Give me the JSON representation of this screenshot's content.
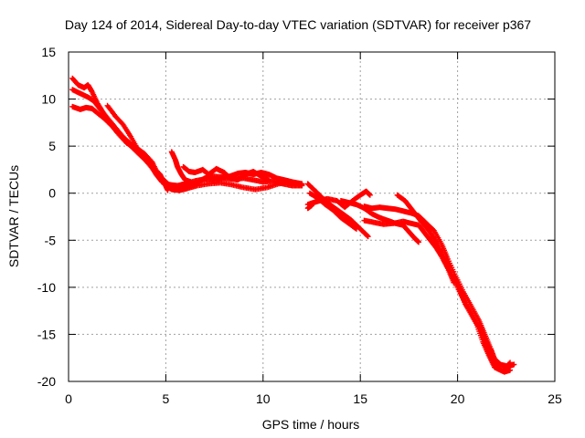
{
  "chart_data": {
    "type": "scatter",
    "title": "Day 124 of 2014, Sidereal Day-to-day VTEC variation (SDTVAR) for receiver p367",
    "xlabel": "GPS time / hours",
    "ylabel": "SDTVAR / TECUs",
    "xlim": [
      0,
      25
    ],
    "ylim": [
      -20,
      15
    ],
    "xticks": [
      0,
      5,
      10,
      15,
      20,
      25
    ],
    "yticks": [
      -20,
      -15,
      -10,
      -5,
      0,
      5,
      10,
      15
    ],
    "grid": true,
    "marker": "+",
    "series": [
      {
        "name": "SDTVAR",
        "color": "#ff0000",
        "tracks": [
          [
            [
              0.2,
              12.2
            ],
            [
              0.5,
              11.5
            ],
            [
              0.8,
              11.2
            ],
            [
              1.0,
              11.5
            ],
            [
              1.2,
              10.8
            ],
            [
              1.5,
              9.5
            ],
            [
              1.8,
              8.5
            ],
            [
              2.1,
              7.5
            ],
            [
              2.5,
              6.5
            ],
            [
              2.9,
              5.6
            ],
            [
              3.3,
              4.8
            ],
            [
              3.7,
              4.0
            ],
            [
              4.1,
              3.2
            ],
            [
              4.4,
              2.6
            ],
            [
              4.7,
              2.0
            ],
            [
              4.9,
              1.2
            ],
            [
              5.1,
              0.3
            ]
          ],
          [
            [
              0.2,
              11.0
            ],
            [
              0.6,
              10.6
            ],
            [
              1.0,
              10.2
            ],
            [
              1.3,
              9.8
            ],
            [
              1.6,
              9.0
            ],
            [
              2.0,
              8.0
            ],
            [
              2.4,
              7.0
            ],
            [
              2.8,
              6.0
            ],
            [
              3.2,
              5.2
            ],
            [
              3.6,
              4.6
            ],
            [
              3.9,
              4.0
            ],
            [
              4.2,
              3.0
            ],
            [
              4.5,
              2.0
            ],
            [
              4.8,
              1.2
            ],
            [
              5.2,
              0.9
            ],
            [
              5.6,
              0.8
            ],
            [
              6.0,
              1.0
            ],
            [
              6.5,
              1.3
            ],
            [
              7.0,
              1.5
            ],
            [
              7.5,
              1.4
            ],
            [
              8.0,
              1.6
            ],
            [
              8.5,
              1.5
            ],
            [
              9.0,
              1.6
            ],
            [
              9.5,
              1.4
            ],
            [
              10.0,
              1.2
            ],
            [
              10.5,
              1.3
            ],
            [
              11.0,
              1.0
            ],
            [
              11.5,
              0.8
            ],
            [
              12.0,
              0.8
            ]
          ],
          [
            [
              0.2,
              9.2
            ],
            [
              0.6,
              8.9
            ],
            [
              0.9,
              9.1
            ],
            [
              1.2,
              9.0
            ],
            [
              1.5,
              8.5
            ],
            [
              1.8,
              8.0
            ],
            [
              2.2,
              7.2
            ],
            [
              2.6,
              6.2
            ],
            [
              3.0,
              5.3
            ],
            [
              3.5,
              4.8
            ],
            [
              3.9,
              4.2
            ],
            [
              4.3,
              3.3
            ],
            [
              4.6,
              2.0
            ],
            [
              4.9,
              1.0
            ],
            [
              5.3,
              0.4
            ],
            [
              5.7,
              0.3
            ],
            [
              6.1,
              0.5
            ],
            [
              6.6,
              0.8
            ],
            [
              7.2,
              1.0
            ],
            [
              7.8,
              1.1
            ],
            [
              8.4,
              0.9
            ],
            [
              9.0,
              0.6
            ],
            [
              9.6,
              0.4
            ],
            [
              10.2,
              0.6
            ],
            [
              10.8,
              1.0
            ],
            [
              11.4,
              1.2
            ],
            [
              12.0,
              0.9
            ]
          ],
          [
            [
              2.0,
              9.3
            ],
            [
              2.4,
              8.2
            ],
            [
              2.8,
              7.3
            ],
            [
              3.2,
              6.0
            ],
            [
              3.6,
              4.5
            ],
            [
              4.0,
              3.4
            ],
            [
              4.4,
              2.4
            ],
            [
              4.8,
              1.6
            ],
            [
              5.1,
              1.0
            ]
          ],
          [
            [
              5.3,
              4.4
            ],
            [
              5.5,
              3.5
            ],
            [
              5.6,
              2.8
            ],
            [
              5.8,
              2.0
            ],
            [
              6.0,
              1.4
            ],
            [
              6.3,
              1.2
            ]
          ],
          [
            [
              5.9,
              2.8
            ],
            [
              6.2,
              2.3
            ],
            [
              6.5,
              2.2
            ],
            [
              6.9,
              2.5
            ],
            [
              7.2,
              2.0
            ],
            [
              7.6,
              2.6
            ],
            [
              8.0,
              2.2
            ],
            [
              8.3,
              1.6
            ],
            [
              8.7,
              1.4
            ],
            [
              9.1,
              2.0
            ],
            [
              9.5,
              2.3
            ],
            [
              9.9,
              1.8
            ],
            [
              10.3,
              1.4
            ]
          ],
          [
            [
              5.5,
              0.6
            ],
            [
              5.9,
              0.8
            ],
            [
              6.3,
              1.0
            ],
            [
              6.7,
              1.2
            ],
            [
              7.0,
              1.6
            ],
            [
              7.4,
              1.8
            ],
            [
              7.9,
              1.7
            ],
            [
              8.3,
              1.8
            ],
            [
              8.7,
              2.1
            ],
            [
              9.1,
              2.2
            ],
            [
              9.5,
              2.0
            ],
            [
              9.9,
              2.2
            ],
            [
              10.3,
              2.0
            ],
            [
              10.7,
              1.6
            ],
            [
              11.1,
              1.4
            ],
            [
              11.5,
              1.2
            ],
            [
              12.0,
              1.0
            ]
          ],
          [
            [
              12.3,
              1.0
            ],
            [
              12.6,
              0.4
            ],
            [
              12.9,
              -0.2
            ],
            [
              13.3,
              -1.0
            ],
            [
              13.7,
              -1.6
            ],
            [
              14.1,
              -2.2
            ],
            [
              14.5,
              -2.8
            ],
            [
              14.8,
              -3.4
            ],
            [
              15.1,
              -4.0
            ],
            [
              15.4,
              -4.6
            ]
          ],
          [
            [
              12.4,
              0.0
            ],
            [
              12.8,
              -0.5
            ],
            [
              13.2,
              -1.2
            ],
            [
              13.6,
              -1.8
            ],
            [
              14.0,
              -2.6
            ],
            [
              14.4,
              -3.2
            ],
            [
              14.8,
              -3.8
            ]
          ],
          [
            [
              12.3,
              -1.2
            ],
            [
              12.6,
              -1.0
            ],
            [
              12.9,
              -0.8
            ],
            [
              13.3,
              -0.6
            ],
            [
              13.8,
              -0.8
            ],
            [
              14.2,
              -1.5
            ],
            [
              14.6,
              -0.8
            ],
            [
              15.0,
              -0.2
            ],
            [
              15.3,
              0.2
            ],
            [
              15.5,
              -0.2
            ]
          ],
          [
            [
              14.0,
              -0.8
            ],
            [
              14.4,
              -1.0
            ],
            [
              14.8,
              -1.2
            ],
            [
              15.2,
              -1.6
            ],
            [
              15.6,
              -2.2
            ],
            [
              16.0,
              -2.6
            ],
            [
              16.4,
              -2.9
            ],
            [
              16.8,
              -3.2
            ],
            [
              17.2,
              -3.4
            ],
            [
              17.5,
              -4.1
            ],
            [
              17.8,
              -4.8
            ],
            [
              18.0,
              -5.2
            ]
          ],
          [
            [
              15.2,
              -2.9
            ],
            [
              15.7,
              -3.1
            ],
            [
              16.2,
              -3.3
            ],
            [
              16.7,
              -3.2
            ],
            [
              17.2,
              -3.0
            ],
            [
              17.6,
              -3.2
            ],
            [
              18.0,
              -3.4
            ],
            [
              18.3,
              -4.2
            ],
            [
              18.6,
              -5.0
            ],
            [
              18.9,
              -5.8
            ],
            [
              19.2,
              -6.8
            ],
            [
              19.5,
              -8.0
            ],
            [
              19.8,
              -9.5
            ]
          ],
          [
            [
              15.2,
              -1.4
            ],
            [
              15.6,
              -1.6
            ],
            [
              16.0,
              -1.5
            ],
            [
              16.4,
              -1.6
            ],
            [
              16.8,
              -1.7
            ],
            [
              17.2,
              -1.9
            ],
            [
              17.6,
              -2.1
            ],
            [
              18.0,
              -2.4
            ],
            [
              18.4,
              -3.2
            ],
            [
              18.8,
              -4.0
            ],
            [
              19.2,
              -5.5
            ],
            [
              19.5,
              -7.0
            ],
            [
              19.9,
              -8.8
            ],
            [
              20.3,
              -10.5
            ],
            [
              20.7,
              -12.0
            ],
            [
              21.1,
              -13.5
            ],
            [
              21.4,
              -15.0
            ],
            [
              21.7,
              -16.5
            ],
            [
              21.9,
              -17.6
            ],
            [
              22.2,
              -18.2
            ],
            [
              22.6,
              -18.4
            ],
            [
              22.9,
              -18.2
            ]
          ],
          [
            [
              16.9,
              -0.2
            ],
            [
              17.3,
              -0.8
            ],
            [
              17.6,
              -1.6
            ],
            [
              17.9,
              -2.4
            ],
            [
              18.2,
              -3.2
            ],
            [
              18.6,
              -4.2
            ],
            [
              18.9,
              -5.2
            ],
            [
              19.2,
              -6.5
            ],
            [
              19.6,
              -8.2
            ],
            [
              20.0,
              -10.0
            ],
            [
              20.4,
              -11.8
            ],
            [
              20.8,
              -13.2
            ],
            [
              21.2,
              -14.6
            ],
            [
              21.5,
              -16.0
            ],
            [
              21.8,
              -17.4
            ],
            [
              22.1,
              -18.6
            ],
            [
              22.4,
              -19.0
            ],
            [
              22.7,
              -18.8
            ]
          ],
          [
            [
              19.0,
              -6.0
            ],
            [
              19.4,
              -7.5
            ],
            [
              19.8,
              -9.2
            ],
            [
              20.2,
              -10.8
            ],
            [
              20.6,
              -12.5
            ],
            [
              21.0,
              -14.0
            ],
            [
              21.3,
              -15.8
            ],
            [
              21.6,
              -17.2
            ],
            [
              21.9,
              -18.5
            ],
            [
              22.3,
              -18.9
            ],
            [
              22.7,
              -18.0
            ]
          ],
          [
            [
              12.3,
              -1.6
            ],
            [
              12.5,
              -1.3
            ]
          ]
        ]
      }
    ]
  }
}
